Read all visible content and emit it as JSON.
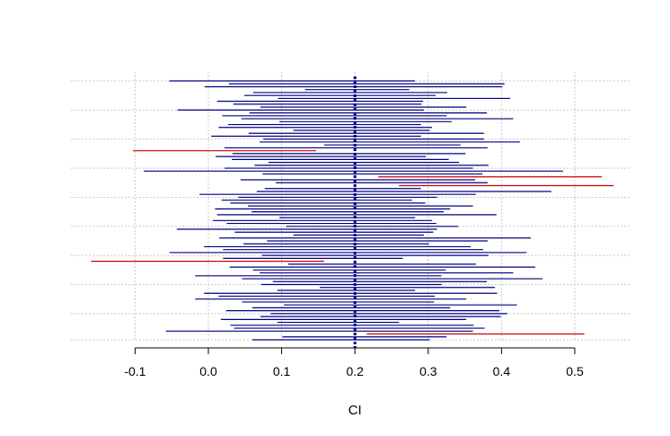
{
  "chart_data": {
    "type": "interval",
    "xlabel": "CI",
    "xlim": [
      -0.2,
      0.58
    ],
    "x_ticks": [
      -0.1,
      0.0,
      0.1,
      0.2,
      0.3,
      0.4,
      0.5
    ],
    "tick_labels": [
      "-0.1",
      "0.0",
      "0.1",
      "0.2",
      "0.3",
      "0.4",
      "0.5"
    ],
    "grid": true,
    "reference_value": 0.2,
    "colors": {
      "covering": "#000080",
      "missing": "#cc0000",
      "grid": "#c8c8c8",
      "reference": "#000080"
    },
    "intervals": [
      {
        "lo": -0.053,
        "hi": 0.282,
        "miss": false
      },
      {
        "lo": 0.028,
        "hi": 0.404,
        "miss": false
      },
      {
        "lo": -0.005,
        "hi": 0.401,
        "miss": false
      },
      {
        "lo": 0.132,
        "hi": 0.274,
        "miss": false
      },
      {
        "lo": 0.061,
        "hi": 0.326,
        "miss": false
      },
      {
        "lo": 0.049,
        "hi": 0.31,
        "miss": false
      },
      {
        "lo": 0.095,
        "hi": 0.412,
        "miss": false
      },
      {
        "lo": 0.012,
        "hi": 0.293,
        "miss": false
      },
      {
        "lo": 0.034,
        "hi": 0.291,
        "miss": false
      },
      {
        "lo": 0.071,
        "hi": 0.352,
        "miss": false
      },
      {
        "lo": -0.042,
        "hi": 0.294,
        "miss": false
      },
      {
        "lo": 0.056,
        "hi": 0.38,
        "miss": false
      },
      {
        "lo": 0.019,
        "hi": 0.325,
        "miss": false
      },
      {
        "lo": 0.045,
        "hi": 0.416,
        "miss": false
      },
      {
        "lo": 0.097,
        "hi": 0.332,
        "miss": false
      },
      {
        "lo": 0.027,
        "hi": 0.29,
        "miss": false
      },
      {
        "lo": 0.014,
        "hi": 0.305,
        "miss": false
      },
      {
        "lo": 0.116,
        "hi": 0.302,
        "miss": false
      },
      {
        "lo": 0.055,
        "hi": 0.376,
        "miss": false
      },
      {
        "lo": 0.004,
        "hi": 0.29,
        "miss": false
      },
      {
        "lo": 0.075,
        "hi": 0.376,
        "miss": false
      },
      {
        "lo": 0.07,
        "hi": 0.425,
        "miss": false
      },
      {
        "lo": 0.158,
        "hi": 0.344,
        "miss": false
      },
      {
        "lo": 0.022,
        "hi": 0.381,
        "miss": false
      },
      {
        "lo": -0.103,
        "hi": 0.147,
        "miss": true
      },
      {
        "lo": 0.033,
        "hi": 0.351,
        "miss": false
      },
      {
        "lo": 0.01,
        "hi": 0.297,
        "miss": false
      },
      {
        "lo": 0.032,
        "hi": 0.328,
        "miss": false
      },
      {
        "lo": 0.082,
        "hi": 0.342,
        "miss": false
      },
      {
        "lo": 0.063,
        "hi": 0.382,
        "miss": false
      },
      {
        "lo": 0.022,
        "hi": 0.361,
        "miss": false
      },
      {
        "lo": -0.088,
        "hi": 0.484,
        "miss": false
      },
      {
        "lo": 0.074,
        "hi": 0.374,
        "miss": false
      },
      {
        "lo": 0.232,
        "hi": 0.537,
        "miss": true
      },
      {
        "lo": 0.044,
        "hi": 0.364,
        "miss": false
      },
      {
        "lo": 0.092,
        "hi": 0.381,
        "miss": false
      },
      {
        "lo": 0.26,
        "hi": 0.553,
        "miss": true
      },
      {
        "lo": 0.077,
        "hi": 0.29,
        "miss": false
      },
      {
        "lo": 0.066,
        "hi": 0.468,
        "miss": false
      },
      {
        "lo": -0.012,
        "hi": 0.365,
        "miss": false
      },
      {
        "lo": 0.041,
        "hi": 0.312,
        "miss": false
      },
      {
        "lo": 0.018,
        "hi": 0.278,
        "miss": false
      },
      {
        "lo": 0.03,
        "hi": 0.296,
        "miss": false
      },
      {
        "lo": 0.054,
        "hi": 0.361,
        "miss": false
      },
      {
        "lo": 0.009,
        "hi": 0.33,
        "miss": false
      },
      {
        "lo": 0.059,
        "hi": 0.321,
        "miss": false
      },
      {
        "lo": 0.012,
        "hi": 0.393,
        "miss": false
      },
      {
        "lo": 0.097,
        "hi": 0.282,
        "miss": false
      },
      {
        "lo": 0.006,
        "hi": 0.305,
        "miss": false
      },
      {
        "lo": 0.025,
        "hi": 0.311,
        "miss": false
      },
      {
        "lo": 0.106,
        "hi": 0.341,
        "miss": false
      },
      {
        "lo": -0.043,
        "hi": 0.312,
        "miss": false
      },
      {
        "lo": 0.036,
        "hi": 0.307,
        "miss": false
      },
      {
        "lo": 0.116,
        "hi": 0.294,
        "miss": false
      },
      {
        "lo": 0.015,
        "hi": 0.44,
        "miss": false
      },
      {
        "lo": 0.08,
        "hi": 0.381,
        "miss": false
      },
      {
        "lo": 0.048,
        "hi": 0.301,
        "miss": false
      },
      {
        "lo": -0.006,
        "hi": 0.358,
        "miss": false
      },
      {
        "lo": 0.02,
        "hi": 0.375,
        "miss": false
      },
      {
        "lo": -0.053,
        "hi": 0.434,
        "miss": false
      },
      {
        "lo": 0.073,
        "hi": 0.382,
        "miss": false
      },
      {
        "lo": 0.02,
        "hi": 0.265,
        "miss": false
      },
      {
        "lo": -0.16,
        "hi": 0.158,
        "miss": true
      },
      {
        "lo": 0.109,
        "hi": 0.365,
        "miss": false
      },
      {
        "lo": 0.029,
        "hi": 0.446,
        "miss": false
      },
      {
        "lo": 0.061,
        "hi": 0.324,
        "miss": false
      },
      {
        "lo": 0.07,
        "hi": 0.416,
        "miss": false
      },
      {
        "lo": -0.018,
        "hi": 0.318,
        "miss": false
      },
      {
        "lo": 0.046,
        "hi": 0.456,
        "miss": false
      },
      {
        "lo": 0.088,
        "hi": 0.38,
        "miss": false
      },
      {
        "lo": 0.072,
        "hi": 0.318,
        "miss": false
      },
      {
        "lo": 0.152,
        "hi": 0.391,
        "miss": false
      },
      {
        "lo": 0.094,
        "hi": 0.282,
        "miss": false
      },
      {
        "lo": -0.006,
        "hi": 0.394,
        "miss": false
      },
      {
        "lo": 0.014,
        "hi": 0.309,
        "miss": false
      },
      {
        "lo": -0.018,
        "hi": 0.352,
        "miss": false
      },
      {
        "lo": 0.046,
        "hi": 0.308,
        "miss": false
      },
      {
        "lo": 0.103,
        "hi": 0.421,
        "miss": false
      },
      {
        "lo": 0.06,
        "hi": 0.33,
        "miss": false
      },
      {
        "lo": 0.024,
        "hi": 0.397,
        "miss": false
      },
      {
        "lo": 0.085,
        "hi": 0.408,
        "miss": false
      },
      {
        "lo": 0.071,
        "hi": 0.399,
        "miss": false
      },
      {
        "lo": 0.017,
        "hi": 0.352,
        "miss": false
      },
      {
        "lo": 0.094,
        "hi": 0.26,
        "miss": false
      },
      {
        "lo": 0.03,
        "hi": 0.362,
        "miss": false
      },
      {
        "lo": 0.035,
        "hi": 0.377,
        "miss": false
      },
      {
        "lo": -0.058,
        "hi": 0.361,
        "miss": false
      },
      {
        "lo": 0.216,
        "hi": 0.513,
        "miss": true
      },
      {
        "lo": 0.101,
        "hi": 0.325,
        "miss": false
      },
      {
        "lo": 0.06,
        "hi": 0.302,
        "miss": false
      }
    ]
  }
}
